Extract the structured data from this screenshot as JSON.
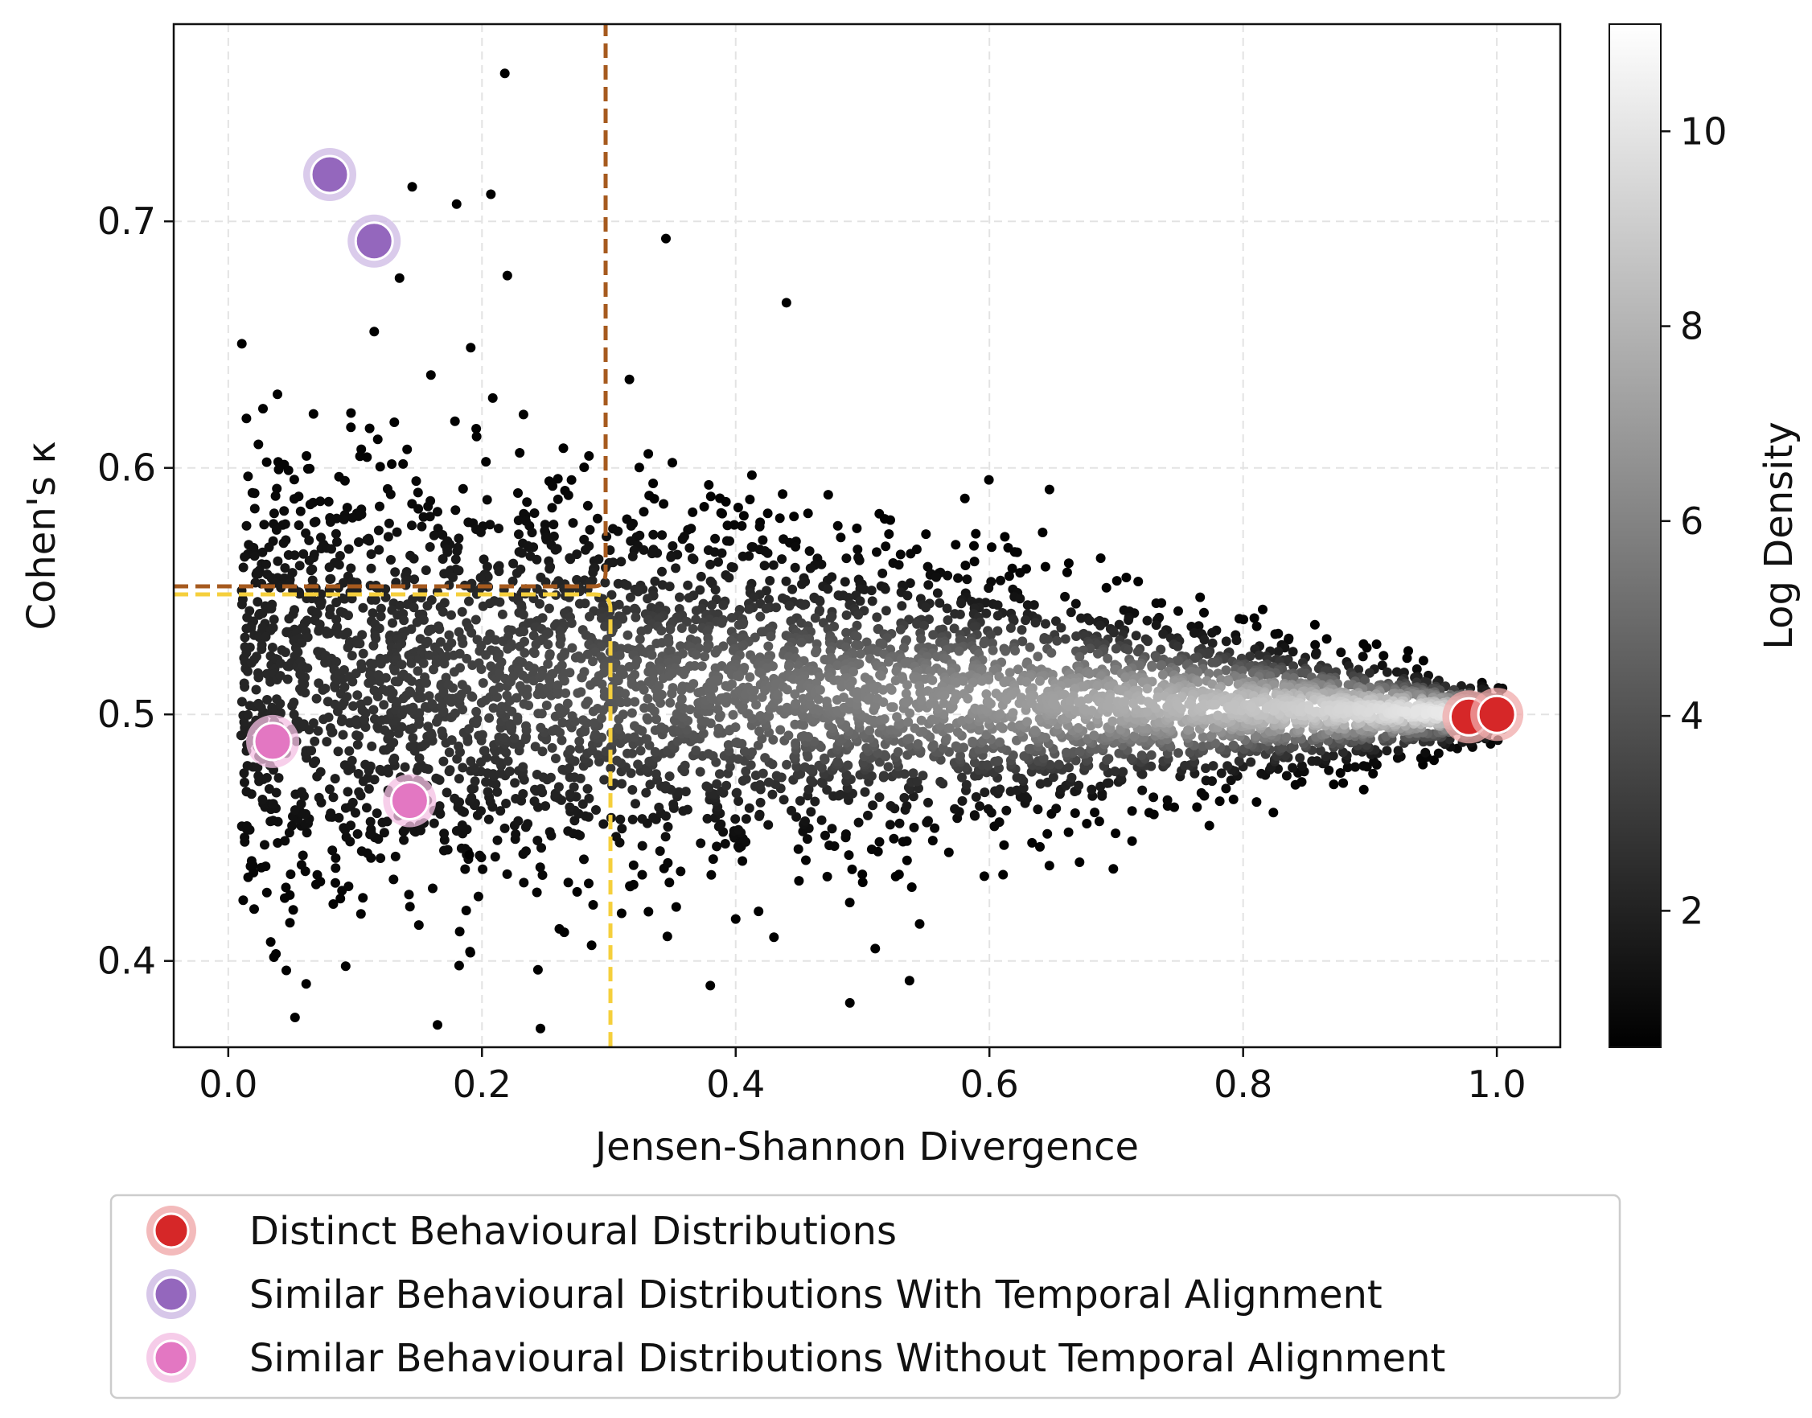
{
  "chart_data": {
    "type": "scatter",
    "title": "",
    "xlabel": "Jensen-Shannon Divergence",
    "ylabel": "Cohen's κ",
    "xlim": [
      -0.043,
      1.05
    ],
    "ylim": [
      0.365,
      0.78
    ],
    "xticks": [
      0.0,
      0.2,
      0.4,
      0.6,
      0.8,
      1.0
    ],
    "xtick_labels": [
      "0.0",
      "0.2",
      "0.4",
      "0.6",
      "0.8",
      "1.0"
    ],
    "yticks": [
      0.4,
      0.5,
      0.6,
      0.7
    ],
    "ytick_labels": [
      "0.4",
      "0.5",
      "0.6",
      "0.7"
    ],
    "grid": true,
    "colorbar": {
      "label": "Log Density",
      "range": [
        0.6,
        11.1
      ],
      "ticks": [
        2,
        4,
        6,
        8,
        10
      ],
      "tick_labels": [
        "2",
        "4",
        "6",
        "8",
        "10"
      ],
      "colormap": "gray"
    },
    "density_cloud": {
      "description_units": "data",
      "center_start": [
        0.0,
        0.515
      ],
      "center_end": [
        1.0,
        0.5
      ],
      "spread_start": 0.05,
      "spread_end": 0.005,
      "outliers": [
        [
          0.218,
          0.76
        ],
        [
          0.145,
          0.714
        ],
        [
          0.18,
          0.707
        ],
        [
          0.207,
          0.711
        ],
        [
          0.345,
          0.693
        ],
        [
          0.135,
          0.677
        ],
        [
          0.22,
          0.678
        ],
        [
          0.44,
          0.667
        ],
        [
          0.49,
          0.383
        ],
        [
          0.38,
          0.39
        ],
        [
          0.537,
          0.392
        ],
        [
          0.51,
          0.405
        ],
        [
          0.4,
          0.417
        ],
        [
          0.275,
          0.428
        ],
        [
          0.19,
          0.443
        ],
        [
          0.545,
          0.415
        ]
      ]
    },
    "thresholds": [
      {
        "name": "brown-threshold",
        "color": "#a65a1e",
        "x": 0.3,
        "y": 0.55,
        "corner": "upper-left"
      },
      {
        "name": "yellow-threshold",
        "color": "#f5cf3c",
        "x": 0.3,
        "y": 0.55,
        "corner": "lower-left"
      }
    ],
    "series": [
      {
        "name": "Distinct Behavioural Distributions",
        "color": "#d62728",
        "halo": "#f0a9aa",
        "points": [
          [
            0.978,
            0.499
          ],
          [
            1.0,
            0.5
          ]
        ]
      },
      {
        "name": "Similar Behavioural Distributions With Temporal Alignment",
        "color": "#9467bd",
        "halo": "#cdb9e4",
        "points": [
          [
            0.08,
            0.719
          ],
          [
            0.115,
            0.692
          ]
        ]
      },
      {
        "name": "Similar Behavioural Distributions Without Temporal Alignment",
        "color": "#e377c2",
        "halo": "#f4bfe3",
        "points": [
          [
            0.035,
            0.489
          ],
          [
            0.143,
            0.465
          ]
        ]
      }
    ],
    "legend": {
      "placement": "below",
      "entries": [
        "Distinct Behavioural Distributions",
        "Similar Behavioural Distributions With Temporal Alignment",
        "Similar Behavioural Distributions Without Temporal Alignment"
      ]
    }
  }
}
